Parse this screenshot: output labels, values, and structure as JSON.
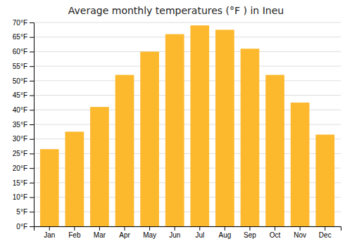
{
  "chart_data": {
    "type": "bar",
    "title": "Average monthly temperatures (°F ) in Ineu",
    "categories": [
      "Jan",
      "Feb",
      "Mar",
      "Apr",
      "May",
      "Jun",
      "Jul",
      "Aug",
      "Sep",
      "Oct",
      "Nov",
      "Dec"
    ],
    "values": [
      26.5,
      32.5,
      41.0,
      52.0,
      60.0,
      66.0,
      69.0,
      67.5,
      61.0,
      52.0,
      42.5,
      31.5
    ],
    "color": "#FDB92E",
    "ylim": [
      0,
      70
    ],
    "yticks": [
      {
        "value": 0,
        "label": "0°F"
      },
      {
        "value": 5,
        "label": "5°F"
      },
      {
        "value": 10,
        "label": "10°F"
      },
      {
        "value": 15,
        "label": "15°F"
      },
      {
        "value": 20,
        "label": "20°F"
      },
      {
        "value": 25,
        "label": "25°F"
      },
      {
        "value": 30,
        "label": "30°F"
      },
      {
        "value": 35,
        "label": "35°F"
      },
      {
        "value": 40,
        "label": "40°F"
      },
      {
        "value": 45,
        "label": "45°F"
      },
      {
        "value": 50,
        "label": "50°F"
      },
      {
        "value": 55,
        "label": "55°F"
      },
      {
        "value": 60,
        "label": "60°F"
      },
      {
        "value": 65,
        "label": "65°F"
      },
      {
        "value": 70,
        "label": "70°F"
      }
    ],
    "grid": true
  }
}
